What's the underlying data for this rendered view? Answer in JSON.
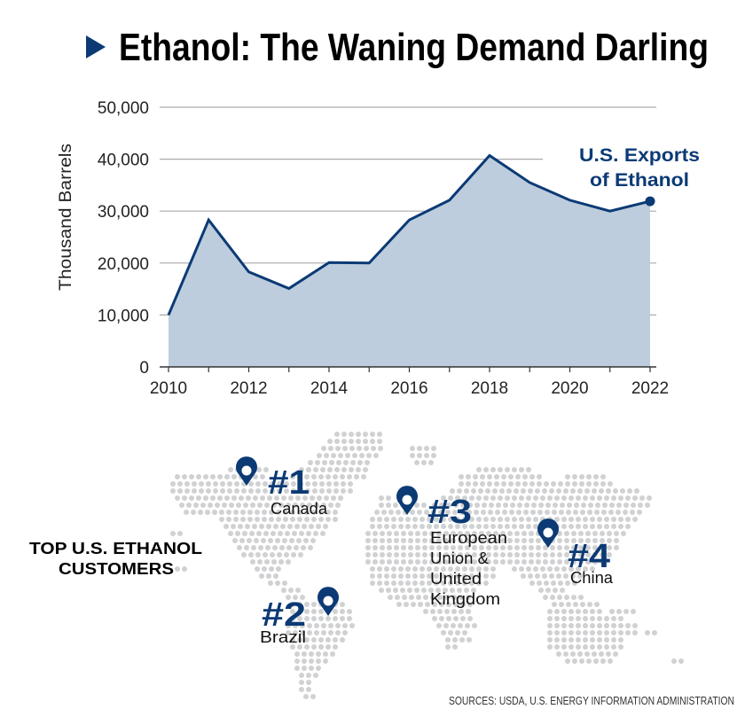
{
  "title": "Ethanol: The Waning Demand Darling",
  "colors": {
    "accent": "#0b3a75",
    "fill": "#bdcddd",
    "grid": "#aaaaaa",
    "map_dot": "#d0d1d3"
  },
  "chart_data": {
    "type": "area",
    "title": "Ethanol: The Waning Demand Darling",
    "ylabel": "Thousand Barrels",
    "xlabel": "",
    "x": [
      2010,
      2011,
      2012,
      2013,
      2014,
      2015,
      2016,
      2017,
      2018,
      2019,
      2020,
      2021,
      2022
    ],
    "series": [
      {
        "name": "U.S. Exports of Ethanol",
        "label_lines": [
          "U.S. Exports",
          "of Ethanol"
        ],
        "values": [
          10000,
          28300,
          18300,
          15100,
          20100,
          20000,
          28300,
          32100,
          40700,
          35500,
          32100,
          30000,
          31900
        ]
      }
    ],
    "ylim": [
      0,
      50000
    ],
    "xlim": [
      2010,
      2022
    ],
    "y_ticks": [
      "0",
      "10,000",
      "20,000",
      "30,000",
      "40,000",
      "50,000"
    ],
    "x_ticks": [
      "2010",
      "2012",
      "2014",
      "2016",
      "2018",
      "2020",
      "2022"
    ],
    "grid": true,
    "legend": "direct label at end of line"
  },
  "map": {
    "heading_lines": [
      "TOP U.S. ETHANOL",
      "CUSTOMERS"
    ],
    "customers": [
      {
        "rank": "#1",
        "lines": [
          "Canada"
        ],
        "icon": "map-pin-icon"
      },
      {
        "rank": "#2",
        "lines": [
          "Brazil"
        ],
        "icon": "map-pin-icon"
      },
      {
        "rank": "#3",
        "lines": [
          "European",
          "Union &",
          "United",
          "Kingdom"
        ],
        "icon": "map-pin-icon"
      },
      {
        "rank": "#4",
        "lines": [
          "China"
        ],
        "icon": "map-pin-icon"
      }
    ]
  },
  "sources": "SOURCES: USDA, U.S. ENERGY INFORMATION ADMINISTRATION"
}
